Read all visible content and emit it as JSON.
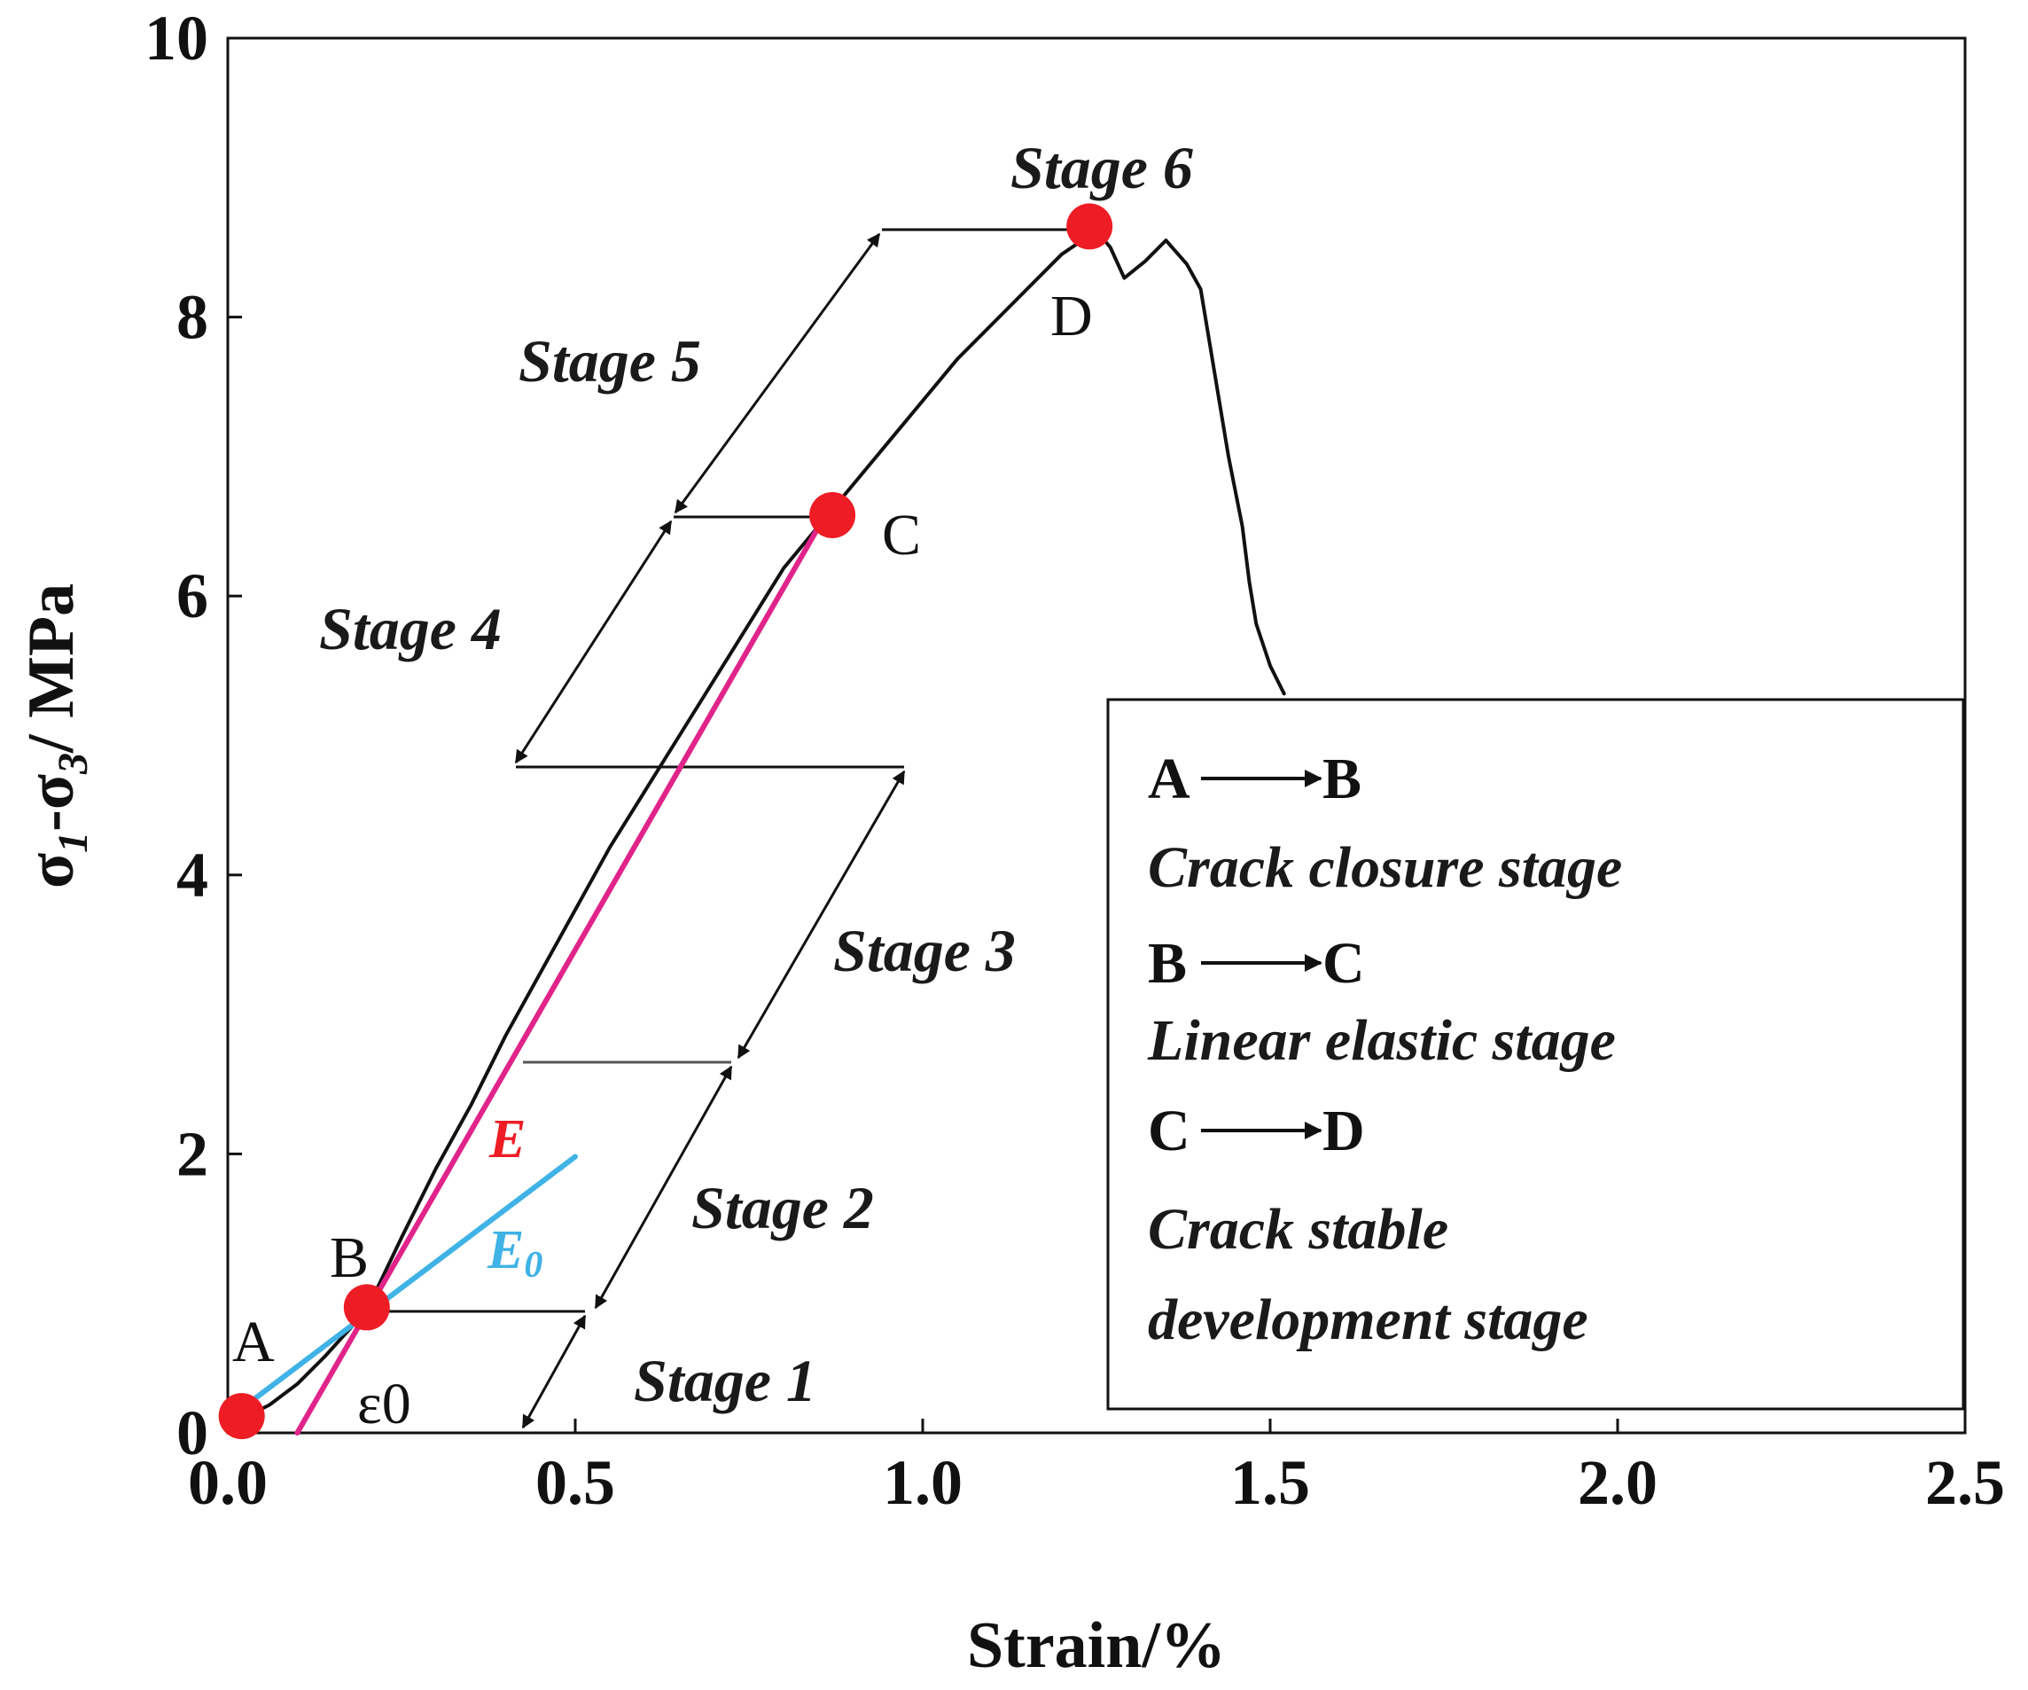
{
  "chart_data": {
    "type": "line",
    "title": "",
    "xlabel": "Strain/%",
    "ylabel_parts": [
      "σ",
      "1",
      "-σ",
      "3",
      "/ MPa"
    ],
    "xlim": [
      0,
      2.5
    ],
    "ylim": [
      0,
      10
    ],
    "x_ticks": [
      "0.0",
      "0.5",
      "1.0",
      "1.5",
      "2.0",
      "2.5"
    ],
    "y_ticks": [
      "0",
      "2",
      "4",
      "6",
      "8",
      "10"
    ],
    "grid": false,
    "series": [
      {
        "values_xy": [
          [
            0.02,
            0.1
          ],
          [
            0.06,
            0.2
          ],
          [
            0.1,
            0.35
          ],
          [
            0.14,
            0.55
          ],
          [
            0.2,
            0.88
          ],
          [
            0.25,
            1.4
          ],
          [
            0.3,
            1.9
          ],
          [
            0.35,
            2.35
          ],
          [
            0.4,
            2.85
          ],
          [
            0.45,
            3.3
          ],
          [
            0.5,
            3.75
          ],
          [
            0.55,
            4.2
          ],
          [
            0.6,
            4.6
          ],
          [
            0.65,
            5.0
          ],
          [
            0.7,
            5.4
          ],
          [
            0.75,
            5.8
          ],
          [
            0.8,
            6.2
          ],
          [
            0.85,
            6.5
          ],
          [
            0.9,
            6.8
          ],
          [
            0.95,
            7.1
          ],
          [
            1.0,
            7.4
          ],
          [
            1.05,
            7.7
          ],
          [
            1.1,
            7.95
          ],
          [
            1.15,
            8.2
          ],
          [
            1.2,
            8.45
          ],
          [
            1.25,
            8.62
          ],
          [
            1.27,
            8.5
          ],
          [
            1.29,
            8.28
          ],
          [
            1.32,
            8.4
          ],
          [
            1.35,
            8.55
          ],
          [
            1.38,
            8.38
          ],
          [
            1.4,
            8.2
          ],
          [
            1.42,
            7.6
          ],
          [
            1.44,
            7.0
          ],
          [
            1.46,
            6.5
          ],
          [
            1.47,
            6.1
          ],
          [
            1.48,
            5.8
          ],
          [
            1.5,
            5.5
          ],
          [
            1.52,
            5.3
          ]
        ],
        "color": "#111111"
      },
      {
        "values_xy": [
          [
            0.1,
            0.0
          ],
          [
            0.86,
            6.58
          ]
        ],
        "color": "#e0248a"
      },
      {
        "values_xy": [
          [
            0.04,
            0.25
          ],
          [
            0.5,
            1.98
          ]
        ],
        "color": "#3fb2e6"
      }
    ],
    "points": [
      {
        "label": "A",
        "x": 0.02,
        "y": 0.12,
        "color": "#ee1c25"
      },
      {
        "label": "B",
        "x": 0.2,
        "y": 0.9,
        "color": "#ee1c25"
      },
      {
        "label": "C",
        "x": 0.87,
        "y": 6.58,
        "color": "#ee1c25"
      },
      {
        "label": "D",
        "x": 1.24,
        "y": 8.65,
        "color": "#ee1c25"
      }
    ],
    "stage_labels": [
      "Stage 1",
      "Stage 2",
      "Stage 3",
      "Stage 4",
      "Stage 5",
      "Stage 6"
    ],
    "stage_levels_y": [
      0.0,
      0.88,
      2.68,
      4.78,
      6.58,
      8.65
    ],
    "epsilon_label": "ε0",
    "E_label": "E",
    "E_color": "#ee1c25",
    "E0_label": "E",
    "E0_sub": "0",
    "E0_color": "#3fb2e6"
  },
  "legend": {
    "items": [
      {
        "from": "A",
        "to": "B",
        "desc": [
          "Crack closure stage"
        ]
      },
      {
        "from": "B",
        "to": "C",
        "desc": [
          "Linear elastic stage"
        ]
      },
      {
        "from": "C",
        "to": "D",
        "desc": [
          "Crack stable",
          "development stage"
        ]
      }
    ]
  }
}
